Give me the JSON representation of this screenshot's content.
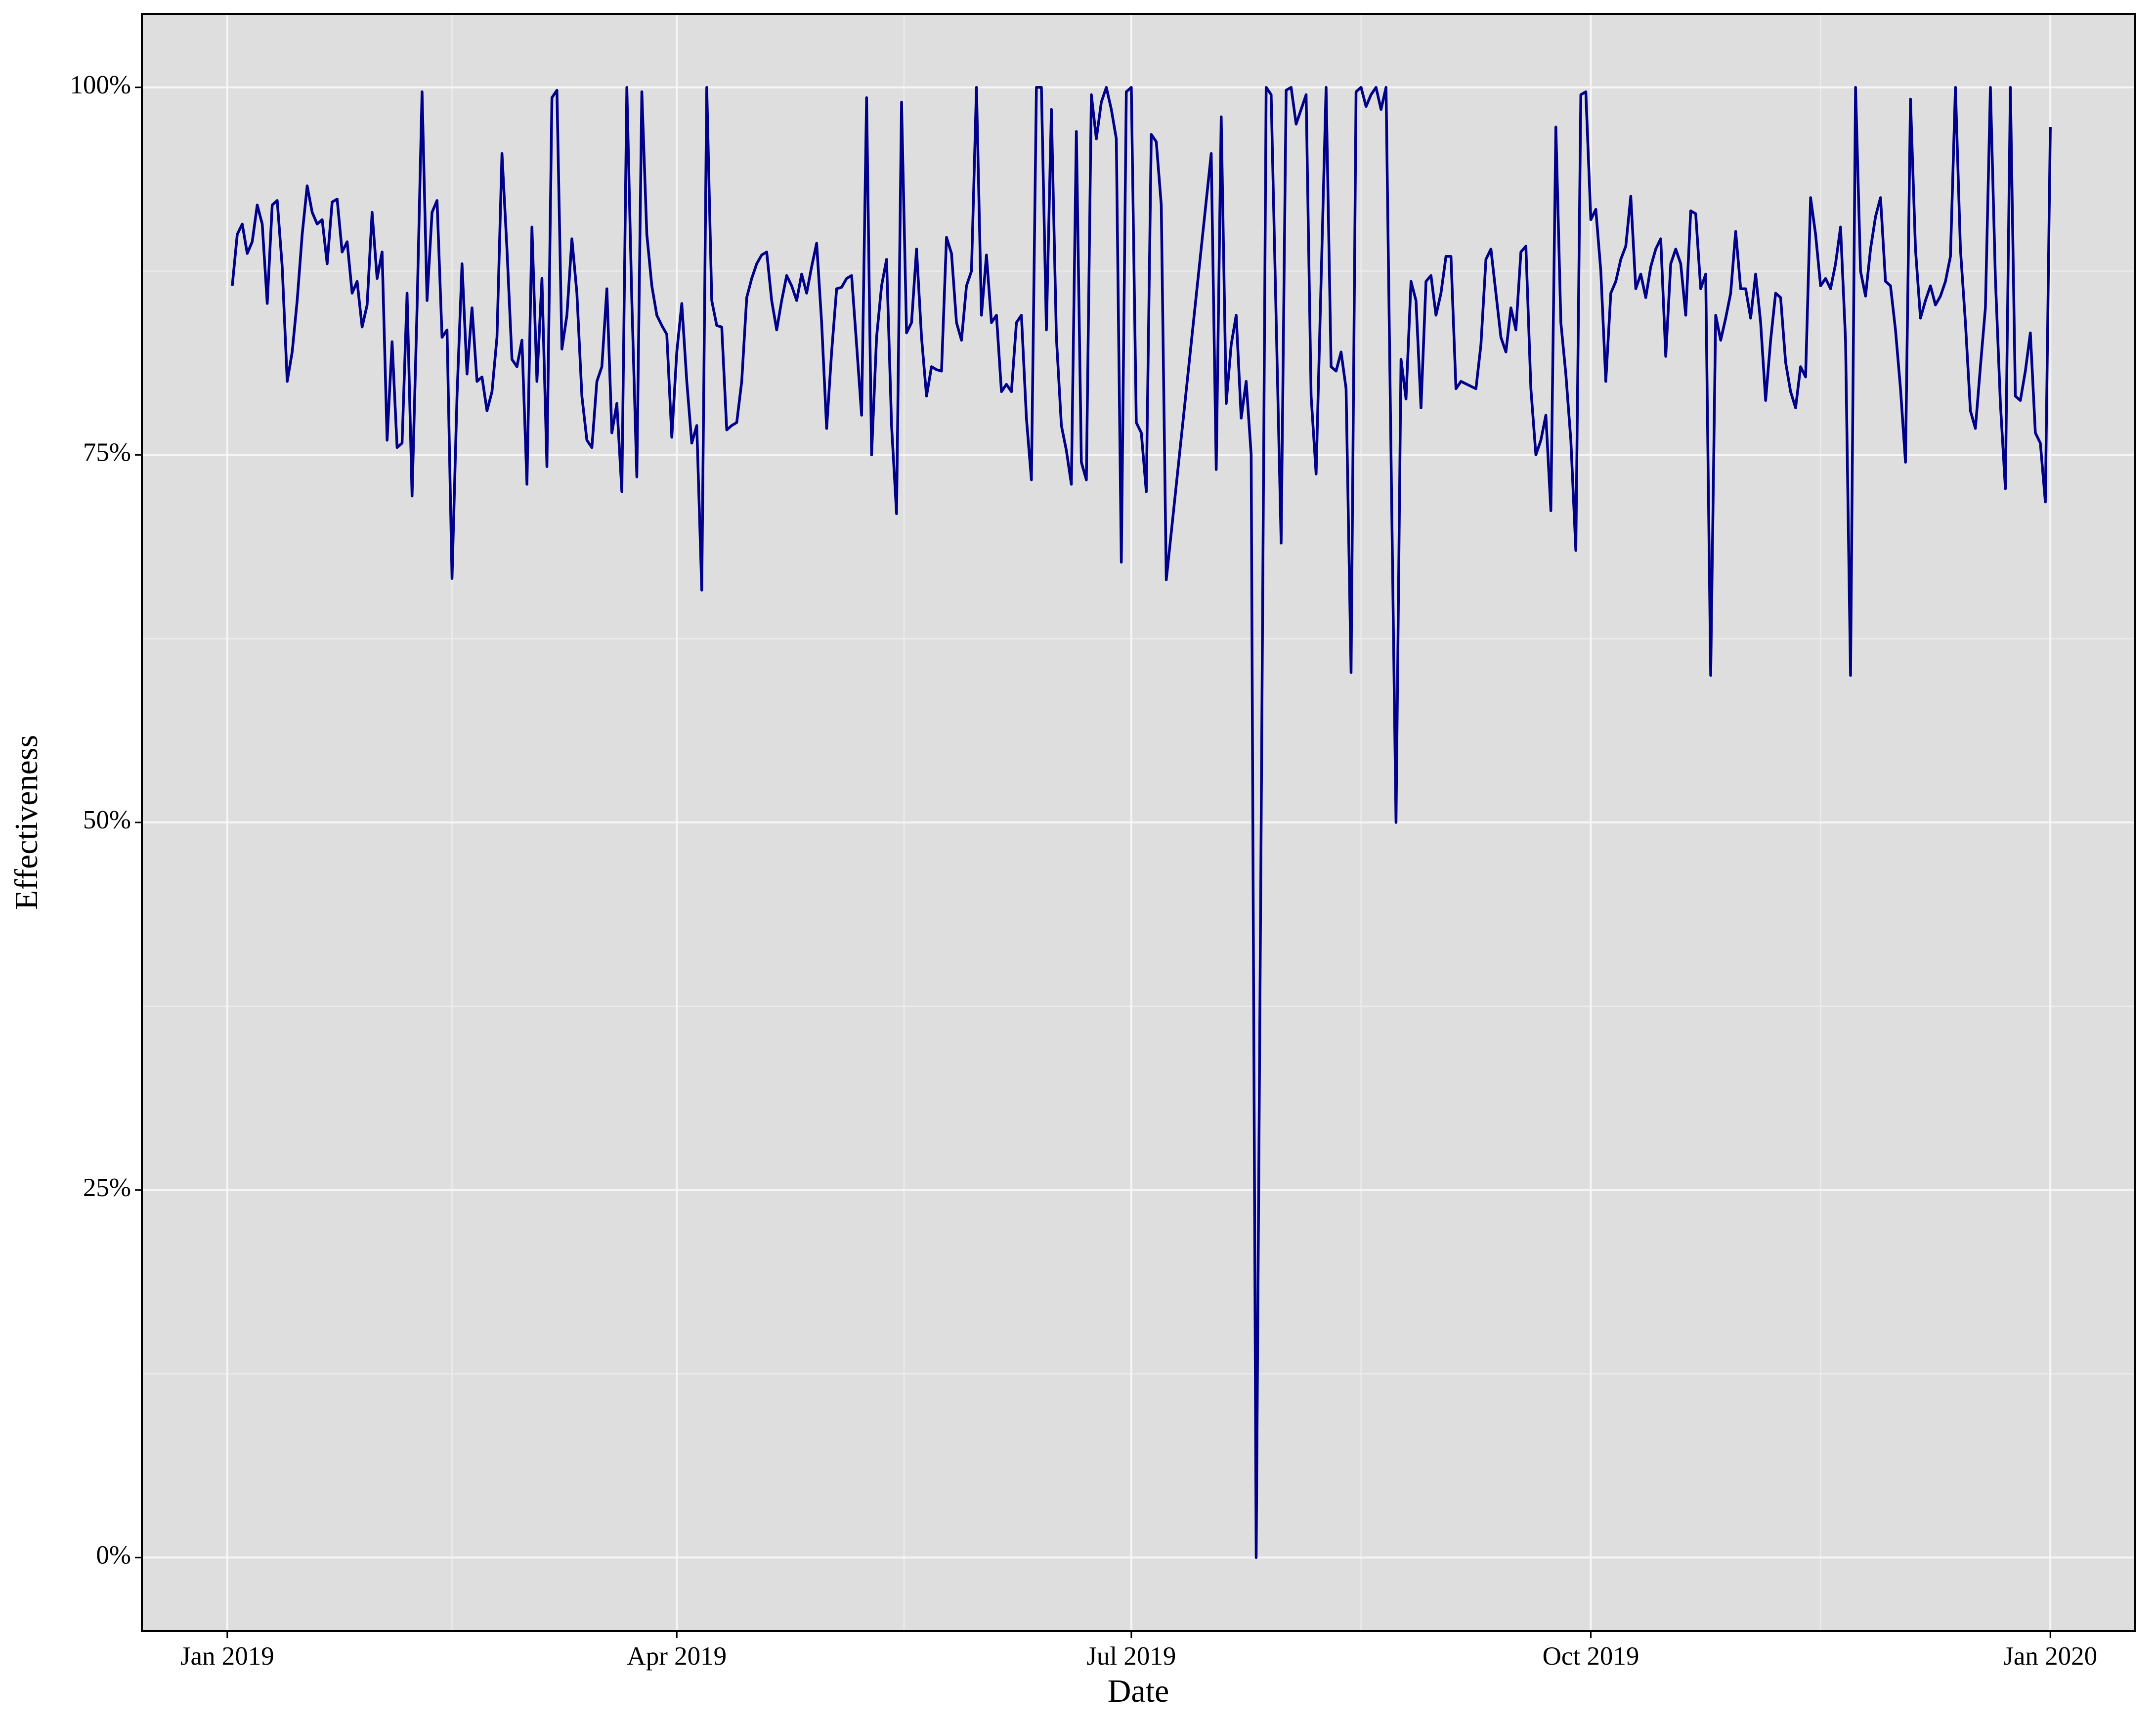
{
  "chart_data": {
    "type": "line",
    "x_label": "Date",
    "y_label": "Effectiveness",
    "color": "#00008b",
    "x": [
      1,
      2,
      3,
      4,
      5,
      6,
      7,
      8,
      9,
      10,
      11,
      12,
      13,
      14,
      15,
      16,
      17,
      18,
      19,
      20,
      21,
      22,
      23,
      24,
      25,
      26,
      27,
      28,
      29,
      30,
      31,
      32,
      33,
      34,
      35,
      36,
      37,
      38,
      39,
      40,
      41,
      42,
      43,
      44,
      45,
      46,
      47,
      48,
      49,
      50,
      51,
      52,
      53,
      54,
      55,
      56,
      57,
      58,
      59,
      60,
      61,
      62,
      63,
      64,
      65,
      66,
      67,
      68,
      69,
      70,
      71,
      72,
      73,
      74,
      75,
      76,
      77,
      78,
      79,
      80,
      81,
      82,
      83,
      84,
      85,
      86,
      87,
      88,
      89,
      90,
      91,
      92,
      93,
      94,
      95,
      96,
      97,
      98,
      99,
      100,
      101,
      102,
      103,
      104,
      105,
      106,
      107,
      108,
      109,
      110,
      111,
      112,
      113,
      114,
      115,
      116,
      117,
      118,
      119,
      120,
      121,
      122,
      123,
      124,
      125,
      126,
      127,
      128,
      129,
      130,
      131,
      132,
      133,
      134,
      135,
      136,
      137,
      138,
      139,
      140,
      141,
      142,
      143,
      144,
      145,
      146,
      147,
      148,
      149,
      150,
      151,
      152,
      153,
      154,
      155,
      156,
      157,
      158,
      159,
      160,
      161,
      162,
      163,
      164,
      165,
      166,
      167,
      168,
      169,
      170,
      171,
      172,
      173,
      174,
      175,
      176,
      177,
      178,
      179,
      180,
      181,
      182,
      183,
      184,
      185,
      186,
      187,
      188,
      197,
      198,
      199,
      200,
      201,
      202,
      203,
      204,
      205,
      206,
      208,
      209,
      211,
      212,
      213,
      214,
      215,
      216,
      217,
      218,
      220,
      221,
      222,
      223,
      224,
      225,
      226,
      227,
      228,
      229,
      230,
      231,
      232,
      234,
      235,
      236,
      237,
      238,
      239,
      240,
      241,
      242,
      243,
      244,
      245,
      246,
      247,
      250,
      251,
      252,
      253,
      254,
      255,
      256,
      257,
      258,
      259,
      260,
      261,
      262,
      263,
      264,
      265,
      266,
      267,
      268,
      269,
      270,
      271,
      272,
      273,
      274,
      275,
      276,
      277,
      278,
      279,
      280,
      281,
      282,
      283,
      284,
      285,
      286,
      287,
      288,
      289,
      290,
      291,
      292,
      293,
      294,
      295,
      296,
      297,
      298,
      299,
      300,
      301,
      302,
      303,
      304,
      305,
      306,
      307,
      308,
      309,
      310,
      311,
      312,
      313,
      314,
      315,
      316,
      317,
      318,
      319,
      320,
      321,
      322,
      323,
      324,
      325,
      326,
      327,
      328,
      329,
      330,
      331,
      332,
      333,
      334,
      335,
      336,
      337,
      338,
      339,
      340,
      341,
      342,
      343,
      344,
      345,
      346,
      347,
      348,
      349,
      350,
      351,
      352,
      353,
      354,
      355,
      356,
      357,
      358,
      359,
      360,
      361,
      362,
      363,
      364,
      365
    ],
    "values": [
      86.5,
      90,
      90.7,
      88.7,
      89.5,
      92,
      90.7,
      85.3,
      92,
      92.3,
      87.8,
      80,
      82,
      85.5,
      90,
      93.3,
      91.5,
      90.7,
      91,
      88,
      92.2,
      92.4,
      88.8,
      89.5,
      86,
      86.8,
      83.7,
      85.2,
      91.5,
      87,
      88.8,
      76,
      82.7,
      75.5,
      75.8,
      86,
      72.2,
      85,
      99.7,
      85.5,
      91.5,
      92.3,
      83,
      83.5,
      66.6,
      79,
      88,
      80.5,
      85,
      80,
      80.3,
      78,
      79.3,
      83,
      95.5,
      89,
      81.5,
      81,
      82.8,
      73,
      90.5,
      80,
      87,
      74.2,
      99.3,
      99.8,
      82.2,
      84.5,
      89.7,
      86,
      79,
      76,
      75.5,
      80,
      81,
      86.3,
      76.5,
      78.5,
      72.5,
      100,
      85.5,
      73.5,
      99.7,
      90,
      86.5,
      84.5,
      83.8,
      83.2,
      76.2,
      82,
      85.3,
      80,
      75.8,
      77,
      65.8,
      100,
      85.5,
      83.8,
      83.7,
      76.7,
      77,
      77.2,
      80,
      85.7,
      87,
      88,
      88.6,
      88.8,
      85.5,
      83.5,
      85.5,
      87.2,
      86.5,
      85.5,
      87.3,
      86,
      87.8,
      89.4,
      84,
      76.8,
      82,
      86.3,
      86.4,
      87,
      87.2,
      82.5,
      77.7,
      99.3,
      75,
      83,
      86.5,
      88.3,
      77,
      71,
      99,
      83.3,
      84,
      89,
      83,
      79,
      81,
      80.8,
      80.7,
      89.8,
      88.7,
      84,
      82.8,
      86.5,
      87.5,
      100,
      84.5,
      88.6,
      84,
      84.5,
      79.3,
      79.8,
      79.3,
      84,
      84.5,
      77.5,
      73.3,
      100,
      100,
      83.5,
      98.5,
      83,
      77,
      75.3,
      73,
      97,
      74.5,
      73.3,
      99.5,
      96.5,
      99,
      100,
      98.5,
      96.5,
      67.7,
      99.7,
      100,
      77.2,
      76.5,
      72.5,
      96.8,
      96.3,
      92,
      66.5,
      95.5,
      74,
      98,
      78.5,
      82.5,
      84.5,
      77.5,
      80,
      75,
      0,
      100,
      99.5,
      69,
      99.8,
      100,
      97.5,
      98.5,
      99.5,
      79,
      73.7,
      100,
      81,
      80.7,
      82,
      79.5,
      60.2,
      99.7,
      100,
      98.7,
      99.5,
      100,
      98.5,
      100,
      50,
      81.5,
      78.8,
      86.8,
      85.5,
      78.2,
      86.8,
      87.2,
      84.5,
      86,
      88.5,
      88.5,
      79.5,
      80,
      79.5,
      82.5,
      88.3,
      89,
      86,
      83,
      82,
      85,
      83.5,
      88.8,
      89.2,
      79.5,
      75,
      76,
      77.7,
      71.2,
      97.3,
      84,
      80.5,
      76,
      68.5,
      99.5,
      99.7,
      91,
      91.7,
      87.5,
      80,
      86,
      86.8,
      88.3,
      89.2,
      92.6,
      86.3,
      87.3,
      85.7,
      87.8,
      89,
      89.7,
      81.7,
      88,
      89,
      88,
      84.5,
      91.6,
      91.4,
      86.3,
      87.3,
      60,
      84.5,
      82.8,
      84.3,
      86,
      90.2,
      86.3,
      86.3,
      84.3,
      87.3,
      84,
      78.7,
      82.8,
      86,
      85.7,
      81.3,
      79.3,
      78.2,
      81,
      80.3,
      92.5,
      90,
      86.5,
      87,
      86.3,
      88,
      90.5,
      82.8,
      60,
      100,
      87.5,
      85.8,
      89,
      91.2,
      92.5,
      86.8,
      86.5,
      83.5,
      79.5,
      74.5,
      99.2,
      89,
      84.3,
      85.5,
      86.5,
      85.2,
      85.8,
      86.8,
      88.5,
      100,
      89,
      84,
      78,
      76.8,
      81,
      85,
      100,
      87,
      78.5,
      72.7,
      100,
      79,
      78.7,
      80.7,
      83.3,
      76.5,
      75.8,
      71.8,
      97.3
    ],
    "xlim": [
      -17.1,
      382
    ],
    "xticks": [
      {
        "value": 0,
        "label": "Jan 2019"
      },
      {
        "value": 90,
        "label": "Apr 2019"
      },
      {
        "value": 181,
        "label": "Jul 2019"
      },
      {
        "value": 273,
        "label": "Oct 2019"
      },
      {
        "value": 365,
        "label": "Jan 2020"
      }
    ],
    "xminor_ticks": [
      45,
      135.5,
      227,
      319
    ],
    "ylim": [
      -5,
      105
    ],
    "yticks": [
      {
        "value": 0,
        "label": "0%"
      },
      {
        "value": 25,
        "label": "25%"
      },
      {
        "value": 50,
        "label": "50%"
      },
      {
        "value": 75,
        "label": "75%"
      },
      {
        "value": 100,
        "label": "100%"
      }
    ],
    "yminor_ticks": [
      12.5,
      37.5,
      62.5,
      87.5
    ],
    "grid": true
  }
}
